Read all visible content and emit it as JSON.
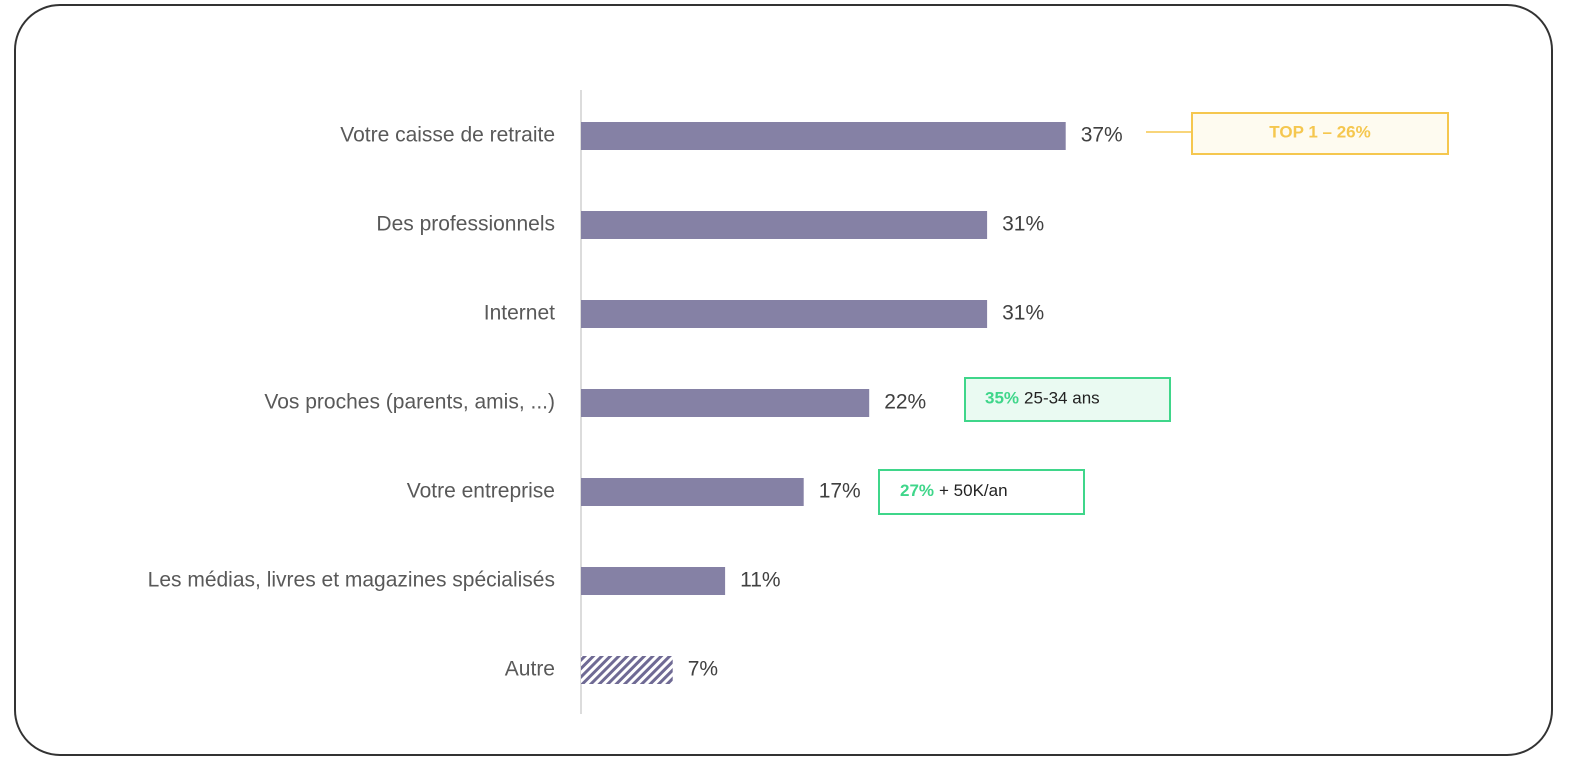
{
  "chart_data": {
    "type": "bar",
    "orientation": "horizontal",
    "categories": [
      "Votre caisse de retraite",
      "Des professionnels",
      "Internet",
      "Vos proches (parents, amis, ...)",
      "Votre entreprise",
      "Les médias, livres et magazines spécialisés",
      "Autre"
    ],
    "values": [
      37,
      31,
      31,
      22,
      17,
      11,
      7
    ],
    "value_labels": [
      "37%",
      "31%",
      "31%",
      "22%",
      "17%",
      "11%",
      "7%"
    ],
    "color": "#8581a5",
    "annotations": [
      {
        "bold": "TOP 1 – 26%"
      },
      {
        "bold": "35%",
        "text": "25-34 ans"
      },
      {
        "bold": "27%",
        "text": "+ 50K/an"
      }
    ]
  }
}
